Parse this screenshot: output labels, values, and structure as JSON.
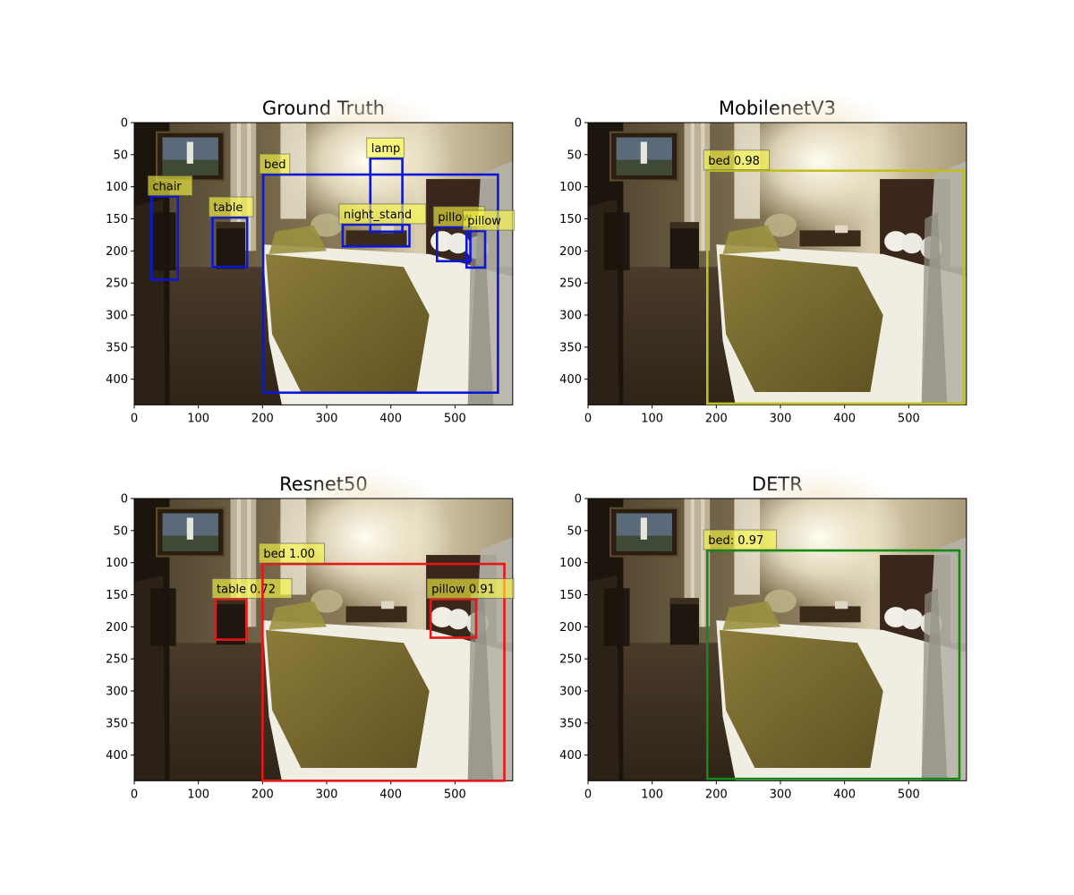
{
  "image": {
    "width": 590,
    "height": 440,
    "xticks": [
      0,
      100,
      200,
      300,
      400,
      500
    ],
    "yticks": [
      0,
      50,
      100,
      150,
      200,
      250,
      300,
      350,
      400
    ]
  },
  "panels": [
    {
      "title": "Ground Truth",
      "box_color": "#0b17d6",
      "boxes": [
        {
          "label": "chair",
          "x1": 27,
          "y1": 115,
          "x2": 68,
          "y2": 245
        },
        {
          "label": "table",
          "x1": 122,
          "y1": 148,
          "x2": 176,
          "y2": 225
        },
        {
          "label": "bed",
          "x1": 201,
          "y1": 81,
          "x2": 567,
          "y2": 421
        },
        {
          "label": "lamp",
          "x1": 368,
          "y1": 56,
          "x2": 418,
          "y2": 170
        },
        {
          "label": "night_stand",
          "x1": 325,
          "y1": 159,
          "x2": 429,
          "y2": 193
        },
        {
          "label": "pillow",
          "x1": 472,
          "y1": 163,
          "x2": 524,
          "y2": 216
        },
        {
          "label": "pillow",
          "x1": 518,
          "y1": 169,
          "x2": 547,
          "y2": 226
        }
      ]
    },
    {
      "title": "MobilenetV3",
      "box_color": "#bfbf1e",
      "boxes": [
        {
          "label": "bed 0.98",
          "x1": 186,
          "y1": 75,
          "x2": 586,
          "y2": 438
        }
      ]
    },
    {
      "title": "Resnet50",
      "box_color": "#e81717",
      "boxes": [
        {
          "label": "table 0.72",
          "x1": 127,
          "y1": 157,
          "x2": 175,
          "y2": 220
        },
        {
          "label": "bed 1.00",
          "x1": 200,
          "y1": 102,
          "x2": 577,
          "y2": 440
        },
        {
          "label": "pillow 0.91",
          "x1": 462,
          "y1": 157,
          "x2": 533,
          "y2": 217
        }
      ]
    },
    {
      "title": "DETR",
      "box_color": "#138a13",
      "boxes": [
        {
          "label": "bed: 0.97",
          "x1": 186,
          "y1": 81,
          "x2": 579,
          "y2": 437
        }
      ]
    }
  ]
}
